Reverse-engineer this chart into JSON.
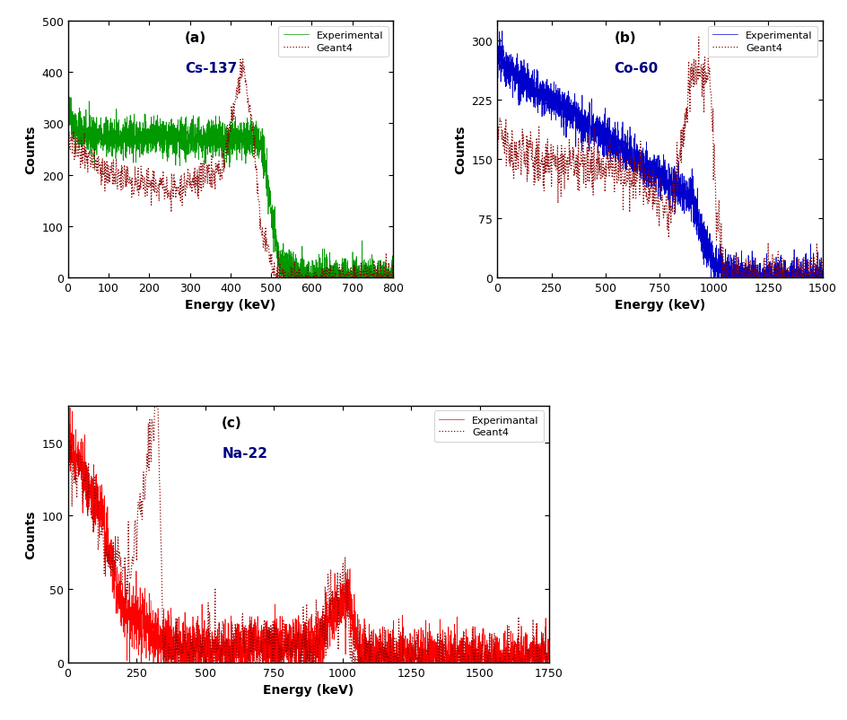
{
  "panel_a": {
    "label": "(a)",
    "source": "Cs-137",
    "label_color": "black",
    "source_color": "navy",
    "xlim": [
      0,
      800
    ],
    "ylim": [
      0,
      500
    ],
    "xticks": [
      0,
      100,
      200,
      300,
      400,
      500,
      600,
      700,
      800
    ],
    "yticks": [
      0,
      100,
      200,
      300,
      400,
      500
    ],
    "xlabel": "Energy (keV)",
    "ylabel": "Counts",
    "exp_color": "#009900",
    "geant_color": "#8b0000",
    "legend_exp": "Experimental",
    "legend_geant": "Geant4"
  },
  "panel_b": {
    "label": "(b)",
    "source": "Co-60",
    "label_color": "black",
    "source_color": "navy",
    "xlim": [
      0,
      1500
    ],
    "ylim": [
      0,
      325
    ],
    "xticks": [
      0,
      250,
      500,
      750,
      1000,
      1250,
      1500
    ],
    "yticks": [
      0,
      75,
      150,
      225,
      300
    ],
    "xlabel": "Energy (keV)",
    "ylabel": "Counts",
    "exp_color": "#0000cc",
    "geant_color": "#8b0000",
    "legend_exp": "Experimental",
    "legend_geant": "Geant4"
  },
  "panel_c": {
    "label": "(c)",
    "source": "Na-22",
    "label_color": "black",
    "source_color": "navy",
    "xlim": [
      0,
      1750
    ],
    "ylim": [
      0,
      175
    ],
    "xticks": [
      0,
      250,
      500,
      750,
      1000,
      1250,
      1500,
      1750
    ],
    "yticks": [
      0,
      50,
      100,
      150
    ],
    "xlabel": "Energy (keV)",
    "ylabel": "Counts",
    "exp_color": "#ff0000",
    "geant_color": "#8b0000",
    "legend_exp": "Experimantal",
    "legend_geant": "Geant4"
  }
}
